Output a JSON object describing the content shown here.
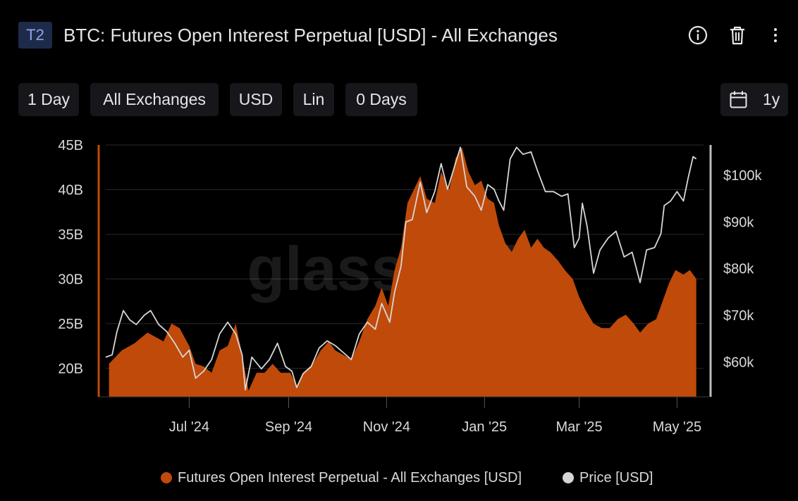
{
  "header": {
    "tag": "T2",
    "title": "BTC: Futures Open Interest Perpetual [USD] - All Exchanges",
    "icons": [
      "info-icon",
      "trash-icon",
      "more-vertical-icon"
    ]
  },
  "toolbar": {
    "resolution": "1 Day",
    "exchange": "All Exchanges",
    "currency": "USD",
    "scale": "Lin",
    "moving_average": "0 Days",
    "range_label": "1y",
    "range_icon": "calendar-icon"
  },
  "watermark": "glassnode",
  "colors": {
    "open_interest": "#c04a0a",
    "price": "#d6d6d6",
    "background": "#000000",
    "grid": "#2a2a2a",
    "axis_text": "#d9d9de"
  },
  "chart_data": {
    "type": "area",
    "x_start": "2024-05-10",
    "x_end": "2025-05-14",
    "x_ticks": [
      {
        "date": "2024-07-01",
        "label": "Jul '24"
      },
      {
        "date": "2024-09-01",
        "label": "Sep '24"
      },
      {
        "date": "2024-11-01",
        "label": "Nov '24"
      },
      {
        "date": "2025-01-01",
        "label": "Jan '25"
      },
      {
        "date": "2025-03-01",
        "label": "Mar '25"
      },
      {
        "date": "2025-05-01",
        "label": "May '25"
      }
    ],
    "y_left": {
      "unit": "USD",
      "ylim": [
        16.8,
        45
      ],
      "ticks": [
        20,
        25,
        30,
        35,
        40,
        45
      ],
      "tick_labels": [
        "20B",
        "25B",
        "30B",
        "35B",
        "40B",
        "45B"
      ]
    },
    "y_right": {
      "unit": "USD",
      "ylim": [
        52500,
        106500
      ],
      "ticks": [
        60000,
        70000,
        80000,
        90000,
        100000
      ],
      "tick_labels": [
        "$60k",
        "$70k",
        "$80k",
        "$90k",
        "$100k"
      ]
    },
    "grid": true,
    "legend_position": "bottom-center",
    "series": [
      {
        "name": "Futures Open Interest Perpetual - All Exchanges [USD]",
        "axis": "left",
        "type": "area",
        "points": [
          [
            "2024-05-12",
            20.5
          ],
          [
            "2024-05-20",
            22.0
          ],
          [
            "2024-05-28",
            22.8
          ],
          [
            "2024-06-05",
            24.0
          ],
          [
            "2024-06-10",
            23.5
          ],
          [
            "2024-06-15",
            23.0
          ],
          [
            "2024-06-20",
            25.0
          ],
          [
            "2024-06-25",
            24.5
          ],
          [
            "2024-07-01",
            22.5
          ],
          [
            "2024-07-05",
            20.5
          ],
          [
            "2024-07-10",
            20.2
          ],
          [
            "2024-07-15",
            19.5
          ],
          [
            "2024-07-20",
            22.0
          ],
          [
            "2024-07-25",
            22.5
          ],
          [
            "2024-07-30",
            25.0
          ],
          [
            "2024-08-03",
            21.5
          ],
          [
            "2024-08-07",
            17.5
          ],
          [
            "2024-08-12",
            19.5
          ],
          [
            "2024-08-17",
            19.5
          ],
          [
            "2024-08-22",
            20.5
          ],
          [
            "2024-08-27",
            19.5
          ],
          [
            "2024-09-02",
            19.5
          ],
          [
            "2024-09-06",
            18.0
          ],
          [
            "2024-09-10",
            19.5
          ],
          [
            "2024-09-16",
            20.5
          ],
          [
            "2024-09-21",
            22.0
          ],
          [
            "2024-09-26",
            23.0
          ],
          [
            "2024-09-30",
            22.0
          ],
          [
            "2024-10-05",
            21.5
          ],
          [
            "2024-10-10",
            21.0
          ],
          [
            "2024-10-15",
            23.0
          ],
          [
            "2024-10-20",
            25.5
          ],
          [
            "2024-10-25",
            27.0
          ],
          [
            "2024-10-29",
            29.0
          ],
          [
            "2024-11-02",
            27.0
          ],
          [
            "2024-11-06",
            31.0
          ],
          [
            "2024-11-10",
            33.5
          ],
          [
            "2024-11-14",
            38.5
          ],
          [
            "2024-11-18",
            40.0
          ],
          [
            "2024-11-22",
            41.5
          ],
          [
            "2024-11-26",
            39.0
          ],
          [
            "2024-12-01",
            38.5
          ],
          [
            "2024-12-05",
            42.0
          ],
          [
            "2024-12-10",
            40.0
          ],
          [
            "2024-12-14",
            43.5
          ],
          [
            "2024-12-18",
            44.7
          ],
          [
            "2024-12-22",
            42.0
          ],
          [
            "2024-12-26",
            40.5
          ],
          [
            "2024-12-30",
            41.0
          ],
          [
            "2025-01-03",
            39.0
          ],
          [
            "2025-01-07",
            38.5
          ],
          [
            "2025-01-10",
            36.0
          ],
          [
            "2025-01-14",
            34.0
          ],
          [
            "2025-01-18",
            33.0
          ],
          [
            "2025-01-22",
            34.5
          ],
          [
            "2025-01-26",
            35.5
          ],
          [
            "2025-01-30",
            33.5
          ],
          [
            "2025-02-03",
            34.5
          ],
          [
            "2025-02-07",
            33.5
          ],
          [
            "2025-02-11",
            33.0
          ],
          [
            "2025-02-16",
            32.0
          ],
          [
            "2025-02-20",
            31.0
          ],
          [
            "2025-02-25",
            30.0
          ],
          [
            "2025-03-01",
            28.0
          ],
          [
            "2025-03-05",
            26.5
          ],
          [
            "2025-03-10",
            25.0
          ],
          [
            "2025-03-15",
            24.5
          ],
          [
            "2025-03-20",
            24.5
          ],
          [
            "2025-03-25",
            25.5
          ],
          [
            "2025-03-30",
            26.0
          ],
          [
            "2025-04-04",
            25.0
          ],
          [
            "2025-04-08",
            24.0
          ],
          [
            "2025-04-13",
            25.0
          ],
          [
            "2025-04-18",
            25.5
          ],
          [
            "2025-04-22",
            27.5
          ],
          [
            "2025-04-26",
            29.5
          ],
          [
            "2025-04-30",
            31.0
          ],
          [
            "2025-05-05",
            30.5
          ],
          [
            "2025-05-09",
            31.0
          ],
          [
            "2025-05-13",
            30.0
          ]
        ]
      },
      {
        "name": "Price [USD]",
        "axis": "right",
        "type": "line",
        "points": [
          [
            "2024-05-10",
            61000
          ],
          [
            "2024-05-14",
            61500
          ],
          [
            "2024-05-17",
            66500
          ],
          [
            "2024-05-21",
            71000
          ],
          [
            "2024-05-25",
            69000
          ],
          [
            "2024-05-29",
            68000
          ],
          [
            "2024-06-03",
            70000
          ],
          [
            "2024-06-07",
            71000
          ],
          [
            "2024-06-12",
            68000
          ],
          [
            "2024-06-17",
            66500
          ],
          [
            "2024-06-22",
            64000
          ],
          [
            "2024-06-27",
            61000
          ],
          [
            "2024-07-01",
            62500
          ],
          [
            "2024-07-05",
            56500
          ],
          [
            "2024-07-10",
            58000
          ],
          [
            "2024-07-15",
            60500
          ],
          [
            "2024-07-20",
            66000
          ],
          [
            "2024-07-25",
            68500
          ],
          [
            "2024-07-30",
            66000
          ],
          [
            "2024-08-03",
            61500
          ],
          [
            "2024-08-05",
            54000
          ],
          [
            "2024-08-09",
            61000
          ],
          [
            "2024-08-15",
            58500
          ],
          [
            "2024-08-20",
            60500
          ],
          [
            "2024-08-25",
            64000
          ],
          [
            "2024-08-30",
            59000
          ],
          [
            "2024-09-03",
            58000
          ],
          [
            "2024-09-06",
            54500
          ],
          [
            "2024-09-10",
            57500
          ],
          [
            "2024-09-15",
            59000
          ],
          [
            "2024-09-20",
            63000
          ],
          [
            "2024-09-25",
            64500
          ],
          [
            "2024-09-30",
            63500
          ],
          [
            "2024-10-05",
            62000
          ],
          [
            "2024-10-10",
            60500
          ],
          [
            "2024-10-15",
            66000
          ],
          [
            "2024-10-20",
            68500
          ],
          [
            "2024-10-25",
            67000
          ],
          [
            "2024-10-29",
            72500
          ],
          [
            "2024-11-03",
            68500
          ],
          [
            "2024-11-06",
            75000
          ],
          [
            "2024-11-10",
            80500
          ],
          [
            "2024-11-13",
            90000
          ],
          [
            "2024-11-17",
            90500
          ],
          [
            "2024-11-22",
            98500
          ],
          [
            "2024-11-26",
            92000
          ],
          [
            "2024-12-01",
            96500
          ],
          [
            "2024-12-05",
            102500
          ],
          [
            "2024-12-09",
            97000
          ],
          [
            "2024-12-13",
            101500
          ],
          [
            "2024-12-17",
            106000
          ],
          [
            "2024-12-21",
            97500
          ],
          [
            "2024-12-26",
            95500
          ],
          [
            "2024-12-30",
            92500
          ],
          [
            "2025-01-03",
            98000
          ],
          [
            "2025-01-07",
            97000
          ],
          [
            "2025-01-10",
            94500
          ],
          [
            "2025-01-13",
            92500
          ],
          [
            "2025-01-17",
            103500
          ],
          [
            "2025-01-21",
            106000
          ],
          [
            "2025-01-25",
            104500
          ],
          [
            "2025-01-30",
            105000
          ],
          [
            "2025-02-03",
            101000
          ],
          [
            "2025-02-08",
            96500
          ],
          [
            "2025-02-13",
            96500
          ],
          [
            "2025-02-18",
            95500
          ],
          [
            "2025-02-22",
            96000
          ],
          [
            "2025-02-26",
            84500
          ],
          [
            "2025-03-01",
            86500
          ],
          [
            "2025-03-03",
            94000
          ],
          [
            "2025-03-06",
            89000
          ],
          [
            "2025-03-10",
            79000
          ],
          [
            "2025-03-14",
            84000
          ],
          [
            "2025-03-19",
            86500
          ],
          [
            "2025-03-24",
            88000
          ],
          [
            "2025-03-29",
            82500
          ],
          [
            "2025-04-03",
            83500
          ],
          [
            "2025-04-08",
            77000
          ],
          [
            "2025-04-12",
            84000
          ],
          [
            "2025-04-17",
            84500
          ],
          [
            "2025-04-21",
            87500
          ],
          [
            "2025-04-23",
            93500
          ],
          [
            "2025-04-27",
            94500
          ],
          [
            "2025-05-01",
            96500
          ],
          [
            "2025-05-05",
            94500
          ],
          [
            "2025-05-08",
            99500
          ],
          [
            "2025-05-11",
            104000
          ],
          [
            "2025-05-13",
            103500
          ]
        ]
      }
    ]
  },
  "legend": [
    {
      "label": "Futures Open Interest Perpetual - All Exchanges [USD]",
      "color": "#c04a0a"
    },
    {
      "label": "Price [USD]",
      "color": "#d6d6d6"
    }
  ]
}
